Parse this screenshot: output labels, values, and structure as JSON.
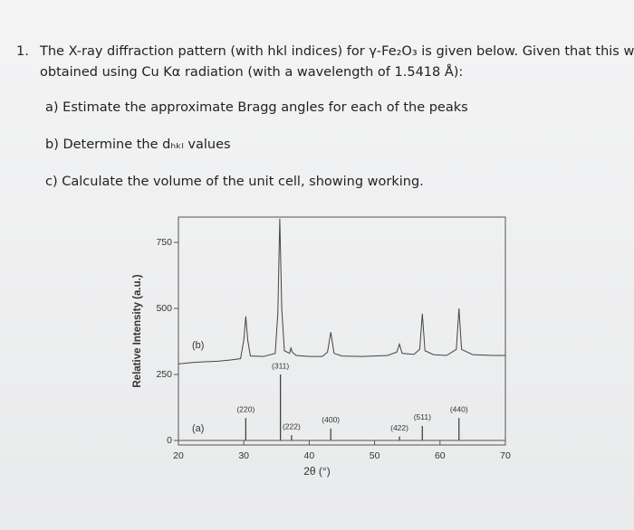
{
  "question": {
    "number": "1.",
    "lines": [
      "The X-ray diffraction pattern (with hkl indices) for γ-Fe₂O₃ is given below. Given that this was",
      "obtained using Cu Kα radiation (with a wavelength of 1.5418 Å):"
    ],
    "parts": [
      "a)  Estimate the approximate Bragg angles for each of the peaks",
      "b)  Determine the dₕₖₗ values",
      "c)  Calculate the volume of the unit cell, showing working."
    ]
  },
  "chart_data": {
    "type": "line",
    "x_label": "2θ (°)",
    "y_label": "Relative Intensity (a.u.)",
    "xlim": [
      20,
      70
    ],
    "xticks": [
      20,
      30,
      40,
      50,
      60,
      70
    ],
    "ylim": [
      -17,
      846
    ],
    "yticks": [
      0,
      250,
      500,
      750
    ],
    "series": [
      {
        "name": "(b)",
        "color": "#444444",
        "x": [
          20,
          22,
          24,
          26,
          28,
          29.5,
          30.0,
          30.3,
          30.6,
          31,
          33,
          34.8,
          35.2,
          35.5,
          35.8,
          36.2,
          37.0,
          37.2,
          37.4,
          38,
          40,
          42,
          42.8,
          43.3,
          43.8,
          45,
          48,
          50,
          52,
          53.4,
          53.8,
          54.2,
          56,
          56.9,
          57.3,
          57.7,
          59,
          61,
          62.5,
          62.9,
          63.3,
          65,
          68,
          70
        ],
        "values": [
          290,
          295,
          298,
          300,
          305,
          310,
          380,
          470,
          380,
          320,
          318,
          330,
          480,
          840,
          500,
          340,
          330,
          350,
          335,
          322,
          318,
          318,
          335,
          410,
          330,
          320,
          318,
          320,
          322,
          335,
          365,
          330,
          326,
          345,
          480,
          340,
          325,
          322,
          345,
          500,
          345,
          325,
          322,
          322
        ]
      }
    ],
    "reference": {
      "name": "(a)",
      "color": "#444444",
      "x": [
        30.3,
        35.6,
        37.3,
        43.3,
        53.8,
        57.3,
        62.9
      ],
      "values": [
        85,
        250,
        20,
        45,
        15,
        55,
        85
      ],
      "labels": [
        "(220)",
        "(311)",
        "(222)",
        "(400)",
        "(422)",
        "(511)",
        "(440)"
      ]
    }
  }
}
